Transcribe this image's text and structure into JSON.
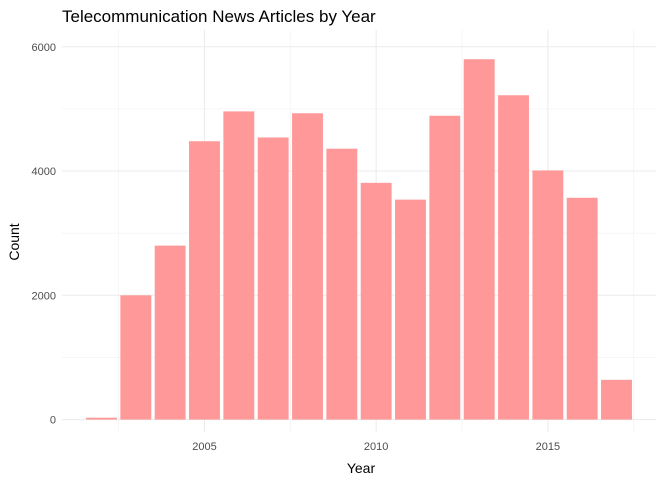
{
  "chart_data": {
    "type": "bar",
    "title": "Telecommunication News Articles by Year",
    "xlabel": "Year",
    "ylabel": "Count",
    "x": [
      2002,
      2003,
      2004,
      2005,
      2006,
      2007,
      2008,
      2009,
      2010,
      2011,
      2012,
      2013,
      2014,
      2015,
      2016,
      2017
    ],
    "values": [
      30,
      2000,
      2800,
      4480,
      4960,
      4540,
      4930,
      4360,
      3810,
      3540,
      4890,
      5800,
      5220,
      4010,
      3570,
      640
    ],
    "xlim": [
      2000.85,
      2018.15
    ],
    "ylim": [
      -200,
      6270
    ],
    "x_ticks": [
      2005,
      2010,
      2015
    ],
    "x_tick_labels": [
      "2005",
      "2010",
      "2015"
    ],
    "y_ticks": [
      0,
      2000,
      4000,
      6000
    ],
    "y_tick_labels": [
      "0",
      "2000",
      "4000",
      "6000"
    ],
    "bar_color": "#ff9999",
    "grid": true,
    "legend": "none"
  }
}
